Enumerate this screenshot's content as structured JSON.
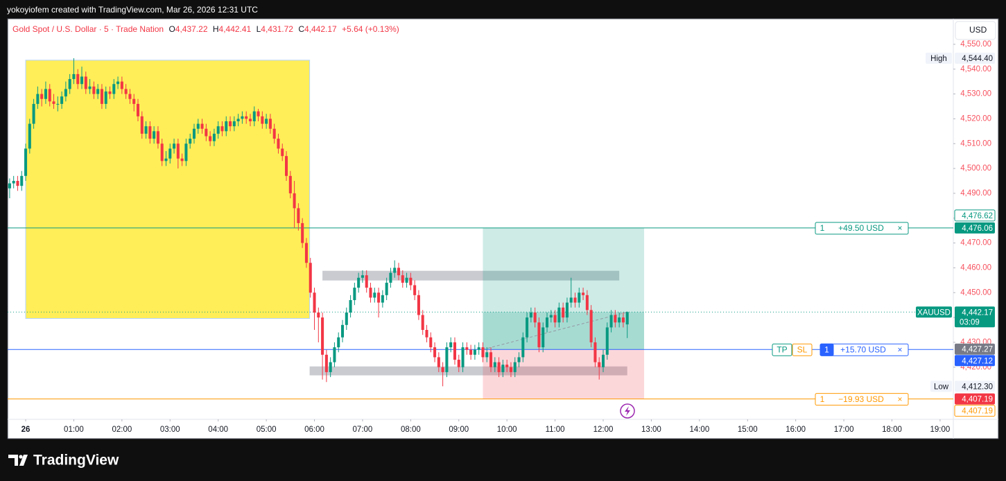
{
  "header": {
    "text": "yokoyiofem created with TradingView.com, Mar 26, 2026 12:31 UTC"
  },
  "chart_data": {
    "type": "candlestick",
    "title": "Gold Spot / U.S. Dollar · 5 · Trade Nation",
    "legend_values": [
      {
        "key": "O",
        "value": "4,437.22"
      },
      {
        "key": "H",
        "value": "4,442.41"
      },
      {
        "key": "L",
        "value": "4,431.72"
      },
      {
        "key": "C",
        "value": "4,442.17"
      }
    ],
    "change": "+5.64 (+0.13%)",
    "currency": "USD",
    "up_color": "#089981",
    "down_color": "#f23645",
    "x": [
      -20,
      -15,
      -10,
      -5,
      0,
      5,
      10,
      15,
      20,
      25,
      30,
      35,
      40,
      45,
      50,
      55,
      60,
      65,
      70,
      75,
      80,
      85,
      90,
      95,
      100,
      105,
      110,
      115,
      120,
      125,
      130,
      135,
      140,
      145,
      150,
      155,
      160,
      165,
      170,
      175,
      180,
      185,
      190,
      195,
      200,
      205,
      210,
      215,
      220,
      225,
      230,
      235,
      240,
      245,
      250,
      255,
      260,
      265,
      270,
      275,
      280,
      285,
      290,
      295,
      300,
      305,
      310,
      315,
      320,
      325,
      330,
      335,
      340,
      345,
      350,
      355,
      360,
      365,
      370,
      375,
      380,
      385,
      390,
      395,
      400,
      405,
      410,
      415,
      420,
      425,
      430,
      435,
      440,
      445,
      450,
      455,
      460,
      465,
      470,
      475,
      480,
      485,
      490,
      495,
      500,
      505,
      510,
      515,
      520,
      525,
      530,
      535,
      540,
      545,
      550,
      555,
      560,
      565,
      570,
      575,
      580,
      585,
      590,
      595,
      600,
      605,
      610,
      615,
      620,
      625,
      630,
      635,
      640,
      645,
      650,
      655,
      660,
      665,
      670,
      675,
      680,
      685,
      690,
      695,
      700,
      705,
      710,
      715,
      720,
      725,
      730,
      735,
      740,
      745,
      750
    ],
    "open": [
      4492,
      4494,
      4495,
      4493,
      4497,
      4508,
      4518,
      4526,
      4530,
      4528,
      4532,
      4527,
      4526,
      4526,
      4529,
      4532,
      4536,
      4538,
      4534,
      4537,
      4532,
      4533,
      4530,
      4532,
      4526,
      4531,
      4530,
      4534,
      4535,
      4532,
      4530,
      4528,
      4526,
      4521,
      4514,
      4517,
      4512,
      4515,
      4510,
      4503,
      4504,
      4508,
      4510,
      4504,
      4503,
      4510,
      4512,
      4516,
      4518,
      4516,
      4513,
      4511,
      4514,
      4517,
      4515,
      4519,
      4517,
      4519,
      4520,
      4521,
      4520,
      4519,
      4523,
      4521,
      4518,
      4520,
      4516,
      4512,
      4508,
      4505,
      4497,
      4490,
      4484,
      4478,
      4470,
      4462,
      4450,
      4442,
      4440,
      4425,
      4418,
      4422,
      4428,
      4432,
      4437,
      4442,
      4447,
      4452,
      4456,
      4457,
      4452,
      4448,
      4450,
      4446,
      4449,
      4454,
      4458,
      4460,
      4457,
      4454,
      4456,
      4453,
      4449,
      4441,
      4435,
      4432,
      4428,
      4424,
      4420,
      4418,
      4428,
      4430,
      4423,
      4420,
      4428,
      4427,
      4425,
      4427,
      4428,
      4424,
      4426,
      4420,
      4422,
      4418,
      4421,
      4420,
      4418,
      4422,
      4424,
      4432,
      4440,
      4442,
      4438,
      4428,
      4436,
      4440,
      4441,
      4438,
      4444,
      4440,
      4446,
      4448,
      4446,
      4450,
      4449,
      4443,
      4430,
      4422,
      4420,
      4425,
      4436,
      4441,
      4438,
      4440,
      4437.22
    ],
    "high": [
      4496,
      4497,
      4497,
      4499,
      4510,
      4520,
      4528,
      4533,
      4532,
      4535,
      4534,
      4530,
      4529,
      4531,
      4535,
      4538,
      4544.4,
      4540,
      4541,
      4539,
      4536,
      4535,
      4534,
      4534,
      4533,
      4533,
      4536,
      4537,
      4537,
      4534,
      4532,
      4530,
      4528,
      4523,
      4519,
      4519,
      4517,
      4517,
      4512,
      4507,
      4510,
      4512,
      4512,
      4506,
      4512,
      4514,
      4518,
      4520,
      4520,
      4518,
      4515,
      4516,
      4519,
      4519,
      4521,
      4521,
      4521,
      4522,
      4523,
      4523,
      4522,
      4525,
      4524,
      4523,
      4522,
      4522,
      4518,
      4514,
      4510,
      4507,
      4499,
      4495,
      4486,
      4480,
      4472,
      4464,
      4452,
      4444,
      4442,
      4427,
      4424,
      4430,
      4434,
      4439,
      4444,
      4449,
      4454,
      4458,
      4459,
      4459,
      4454,
      4452,
      4452,
      4451,
      4456,
      4460,
      4463,
      4462,
      4459,
      4458,
      4458,
      4455,
      4451,
      4443,
      4437,
      4434,
      4430,
      4426,
      4422,
      4430,
      4432,
      4432,
      4425,
      4430,
      4430,
      4429,
      4429,
      4430,
      4430,
      4428,
      4428,
      4424,
      4424,
      4423,
      4423,
      4422,
      4424,
      4426,
      4434,
      4442,
      4444,
      4444,
      4440,
      4438,
      4442,
      4443,
      4443,
      4446,
      4446,
      4448,
      4456,
      4450,
      4452,
      4452,
      4451,
      4445,
      4432,
      4424,
      4427,
      4438,
      4443,
      4443,
      4442,
      4442,
      4442.41
    ],
    "low": [
      4488,
      4492,
      4491,
      4491,
      4495,
      4506,
      4516,
      4524,
      4525,
      4526,
      4525,
      4524,
      4523,
      4524,
      4527,
      4530,
      4534,
      4532,
      4532,
      4530,
      4530,
      4528,
      4528,
      4524,
      4524,
      4528,
      4528,
      4532,
      4530,
      4528,
      4526,
      4523,
      4519,
      4512,
      4512,
      4510,
      4510,
      4508,
      4501,
      4501,
      4502,
      4506,
      4500,
      4501,
      4501,
      4508,
      4510,
      4514,
      4514,
      4511,
      4509,
      4509,
      4512,
      4513,
      4513,
      4515,
      4515,
      4517,
      4518,
      4518,
      4517,
      4517,
      4519,
      4516,
      4516,
      4514,
      4510,
      4506,
      4503,
      4495,
      4488,
      4476,
      4475,
      4468,
      4460,
      4448,
      4435,
      4430,
      4415,
      4414,
      4416,
      4420,
      4426,
      4430,
      4435,
      4440,
      4445,
      4450,
      4454,
      4450,
      4446,
      4446,
      4440,
      4444,
      4447,
      4452,
      4456,
      4455,
      4452,
      4452,
      4451,
      4447,
      4439,
      4433,
      4430,
      4426,
      4422,
      4418,
      4412.3,
      4416,
      4426,
      4421,
      4418,
      4418,
      4425,
      4423,
      4423,
      4425,
      4422,
      4422,
      4418,
      4418,
      4416,
      4416,
      4418,
      4416,
      4416,
      4420,
      4422,
      4430,
      4438,
      4436,
      4426,
      4426,
      4434,
      4438,
      4436,
      4436,
      4438,
      4438,
      4444,
      4444,
      4444,
      4447,
      4441,
      4428,
      4420,
      4415,
      4418,
      4423,
      4434,
      4436,
      4436,
      4436,
      4431.72
    ],
    "close": [
      4494,
      4495,
      4493,
      4497,
      4508,
      4518,
      4526,
      4530,
      4528,
      4532,
      4527,
      4526,
      4526,
      4529,
      4532,
      4536,
      4538,
      4534,
      4537,
      4532,
      4533,
      4530,
      4532,
      4526,
      4531,
      4530,
      4534,
      4535,
      4532,
      4530,
      4528,
      4526,
      4521,
      4514,
      4517,
      4512,
      4515,
      4510,
      4503,
      4504,
      4508,
      4510,
      4504,
      4503,
      4510,
      4512,
      4516,
      4518,
      4516,
      4513,
      4511,
      4514,
      4517,
      4515,
      4519,
      4517,
      4519,
      4520,
      4521,
      4520,
      4519,
      4523,
      4521,
      4518,
      4520,
      4516,
      4512,
      4508,
      4505,
      4497,
      4490,
      4484,
      4478,
      4470,
      4462,
      4450,
      4442,
      4440,
      4425,
      4418,
      4422,
      4428,
      4432,
      4437,
      4442,
      4447,
      4452,
      4456,
      4457,
      4452,
      4448,
      4450,
      4446,
      4449,
      4454,
      4458,
      4460,
      4457,
      4454,
      4456,
      4453,
      4449,
      4441,
      4435,
      4432,
      4428,
      4424,
      4420,
      4418,
      4428,
      4430,
      4423,
      4420,
      4428,
      4427,
      4425,
      4427,
      4428,
      4424,
      4426,
      4420,
      4422,
      4418,
      4421,
      4420,
      4418,
      4422,
      4424,
      4432,
      4440,
      4442,
      4438,
      4428,
      4436,
      4440,
      4441,
      4438,
      4444,
      4440,
      4446,
      4448,
      4446,
      4450,
      4449,
      4443,
      4430,
      4422,
      4420,
      4425,
      4436,
      4441,
      4438,
      4440,
      4438,
      4442.17
    ],
    "xlim": [
      -22.5,
      1156.5
    ],
    "xticks": [
      {
        "value": 0,
        "label": "26"
      },
      {
        "value": 60,
        "label": "01:00"
      },
      {
        "value": 120,
        "label": "02:00"
      },
      {
        "value": 180,
        "label": "03:00"
      },
      {
        "value": 240,
        "label": "04:00"
      },
      {
        "value": 300,
        "label": "05:00"
      },
      {
        "value": 360,
        "label": "06:00"
      },
      {
        "value": 420,
        "label": "07:00"
      },
      {
        "value": 480,
        "label": "08:00"
      },
      {
        "value": 540,
        "label": "09:00"
      },
      {
        "value": 600,
        "label": "10:00"
      },
      {
        "value": 660,
        "label": "11:00"
      },
      {
        "value": 720,
        "label": "12:00"
      },
      {
        "value": 780,
        "label": "13:00"
      },
      {
        "value": 840,
        "label": "14:00"
      },
      {
        "value": 900,
        "label": "15:00"
      },
      {
        "value": 960,
        "label": "16:00"
      },
      {
        "value": 1020,
        "label": "17:00"
      },
      {
        "value": 1080,
        "label": "18:00"
      },
      {
        "value": 1140,
        "label": "19:00"
      }
    ],
    "ylim": [
      4399,
      4560.3
    ],
    "yticks": [
      {
        "value": 4420,
        "label": "4,420.00"
      },
      {
        "value": 4430,
        "label": "4,430.00"
      },
      {
        "value": 4440,
        "label": "4,440.00"
      },
      {
        "value": 4450,
        "label": "4,450.00"
      },
      {
        "value": 4460,
        "label": "4,460.00"
      },
      {
        "value": 4470,
        "label": "4,470.00"
      },
      {
        "value": 4480,
        "label": "4,480.00"
      },
      {
        "value": 4490,
        "label": "4,490.00"
      },
      {
        "value": 4500,
        "label": "4,500.00"
      },
      {
        "value": 4510,
        "label": "4,510.00"
      },
      {
        "value": 4520,
        "label": "4,520.00"
      },
      {
        "value": 4530,
        "label": "4,530.00"
      },
      {
        "value": 4540,
        "label": "4,540.00"
      },
      {
        "value": 4550,
        "label": "4,550.00"
      }
    ],
    "zones": [
      {
        "color": "#ffeb3b",
        "x": [
          0,
          354
        ],
        "y": [
          4439.6,
          4543.6
        ]
      },
      {
        "color": "#b2b5be",
        "x": [
          370,
          740
        ],
        "y": [
          4454.9,
          4458.8
        ]
      },
      {
        "color": "#b2b5be",
        "x": [
          354,
          750
        ],
        "y": [
          4416.7,
          4420.3
        ]
      }
    ],
    "position": {
      "x": [
        570,
        771
      ],
      "target": 4476.06,
      "entry": 4427.12,
      "stop": 4407.19,
      "current": 4442.17,
      "target_label": {
        "qty": "1",
        "text": "+49.50 USD"
      },
      "entry_label": {
        "tp": "TP",
        "sl": "SL",
        "qty": "1",
        "text": "+15.70 USD"
      },
      "stop_label": {
        "qty": "1",
        "text": "−19.93 USD"
      },
      "close_icon": "×"
    },
    "price_badges": [
      {
        "name": "High",
        "value": 4544.4,
        "label": "4,544.40",
        "style": "light"
      },
      {
        "value": 4476.62,
        "label": "4,476.62",
        "style": "teal-outline"
      },
      {
        "value": 4476.06,
        "label": "4,476.06",
        "style": "teal"
      },
      {
        "name": "XAUUSD",
        "value": 4442.17,
        "label": "4,442.17",
        "sub": "03:09",
        "style": "green"
      },
      {
        "value": 4427.27,
        "label": "4,427.27",
        "style": "gray"
      },
      {
        "value": 4427.12,
        "label": "4,427.12",
        "style": "blue"
      },
      {
        "name": "Low",
        "value": 4412.3,
        "label": "4,412.30",
        "style": "light"
      },
      {
        "value": 4407.19,
        "label": "4,407.19",
        "style": "red"
      },
      {
        "value": 4407.19,
        "label": "4,407.19",
        "style": "orange-outline"
      }
    ]
  },
  "footer": {
    "logo": "TradingView"
  }
}
